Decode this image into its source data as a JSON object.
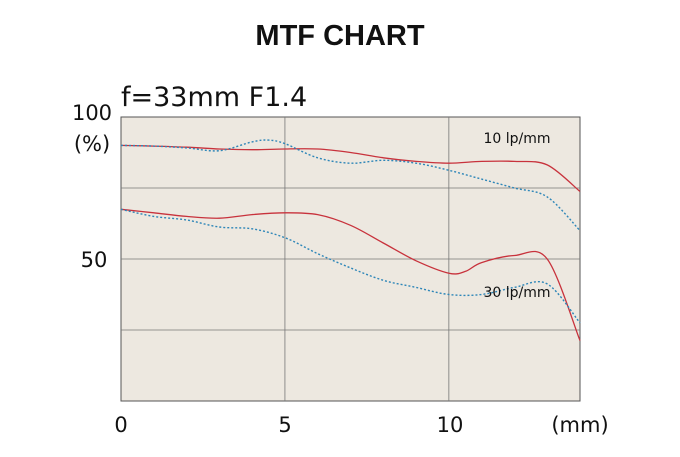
{
  "chart_data": {
    "type": "line",
    "title": "MTF CHART",
    "subtitle": "f=33mm F1.4",
    "xlabel": "(mm)",
    "ylabel": "(%)",
    "xlim": [
      0,
      14
    ],
    "ylim": [
      20,
      100
    ],
    "x_ticks": [
      "0",
      "5",
      "10"
    ],
    "y_ticks": [
      "100",
      "50"
    ],
    "grid": true,
    "background": "#ede8e0",
    "colors": {
      "sagittal": "#c8323c",
      "meridional": "#2e86b8"
    },
    "annotations": [
      "10 lp/mm",
      "30 lp/mm"
    ],
    "series": [
      {
        "style": "solid",
        "x": [
          0,
          1,
          2,
          3,
          4,
          5,
          6,
          7,
          8,
          9,
          10,
          11,
          12,
          13,
          14
        ],
        "y": [
          92,
          91.8,
          91.5,
          91,
          90.8,
          91,
          91,
          90,
          88.5,
          87.5,
          87,
          87.5,
          87.5,
          86.5,
          79
        ]
      },
      {
        "style": "dotted",
        "x": [
          0,
          1,
          2,
          3,
          4,
          4.5,
          5,
          6,
          7,
          8,
          9,
          10,
          11,
          12,
          13,
          14
        ],
        "y": [
          92,
          91.8,
          91.3,
          90.5,
          93,
          93.5,
          92.5,
          88.5,
          87,
          87.8,
          87,
          85,
          82.5,
          80,
          77.5,
          68
        ]
      },
      {
        "style": "solid",
        "x": [
          0,
          1,
          2,
          3,
          4,
          5,
          6,
          7,
          8,
          9,
          10,
          10.5,
          11,
          12,
          13,
          14
        ],
        "y": [
          74,
          73,
          72,
          71.5,
          72.5,
          73,
          72.5,
          69.5,
          64.5,
          59.5,
          56,
          56.5,
          59,
          61,
          60,
          37
        ]
      },
      {
        "style": "dotted",
        "x": [
          0,
          1,
          2,
          3,
          4,
          5,
          6,
          7,
          8,
          9,
          10,
          11,
          12,
          13,
          14
        ],
        "y": [
          74,
          72,
          71,
          69,
          68.5,
          66,
          61.5,
          57.5,
          54,
          52,
          50,
          50,
          52,
          53,
          42
        ]
      }
    ]
  }
}
